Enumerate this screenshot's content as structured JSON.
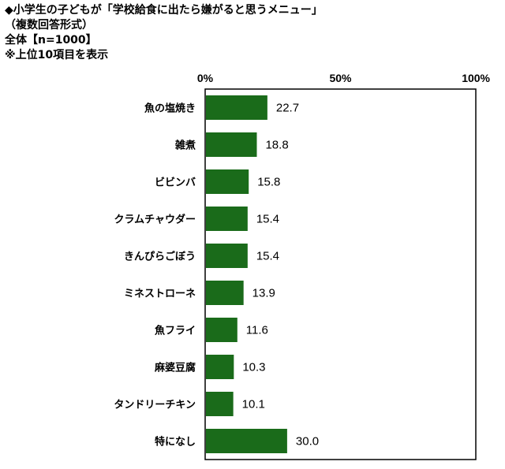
{
  "header": {
    "title": "◆小学生の子どもが「学校給食に出たら嫌がると思うメニュー」",
    "subtitle": "（複数回答形式）",
    "sample": "全体【n=1000】",
    "note": "※上位10項目を表示"
  },
  "chart_data": {
    "type": "bar",
    "orientation": "horizontal",
    "categories": [
      "魚の塩焼き",
      "雑煮",
      "ビビンバ",
      "クラムチャウダー",
      "きんぴらごぼう",
      "ミネストローネ",
      "魚フライ",
      "麻婆豆腐",
      "タンドリーチキン",
      "特になし"
    ],
    "values": [
      22.7,
      18.8,
      15.8,
      15.4,
      15.4,
      13.9,
      11.6,
      10.3,
      10.1,
      30.0
    ],
    "value_labels": [
      "22.7",
      "18.8",
      "15.8",
      "15.4",
      "15.4",
      "13.9",
      "11.6",
      "10.3",
      "10.1",
      "30.0"
    ],
    "xlim": [
      0,
      100
    ],
    "ticks": [
      0,
      50,
      100
    ],
    "tick_labels": [
      "0%",
      "50%",
      "100%"
    ],
    "grid": false,
    "legend": "none",
    "bar_color": "#1a6b1a"
  }
}
